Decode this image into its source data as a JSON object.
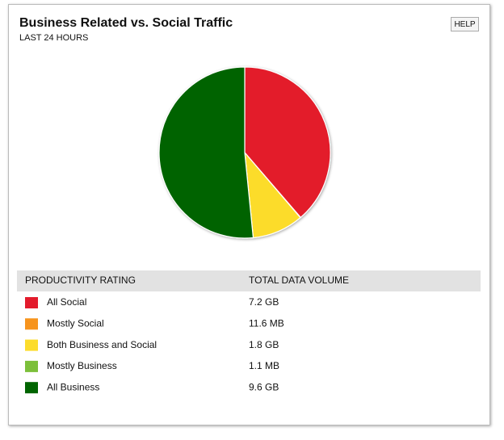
{
  "header": {
    "title": "Business Related vs. Social Traffic",
    "subtitle": "LAST 24 HOURS",
    "help": "HELP"
  },
  "chart_data": {
    "type": "pie",
    "categories": [
      "All Social",
      "Mostly Social",
      "Both Business and Social",
      "Mostly Business",
      "All Business"
    ],
    "values": [
      7.2,
      0.0116,
      1.8,
      0.0011,
      9.6
    ],
    "value_labels": [
      "7.2 GB",
      "11.6 MB",
      "1.8 GB",
      "1.1 MB",
      "9.6 GB"
    ],
    "colors": [
      "#e31b2c",
      "#f7941d",
      "#fcdc2c",
      "#7cbf3a",
      "#006400"
    ]
  },
  "table": {
    "headers": [
      "PRODUCTIVITY RATING",
      "TOTAL DATA VOLUME"
    ]
  }
}
